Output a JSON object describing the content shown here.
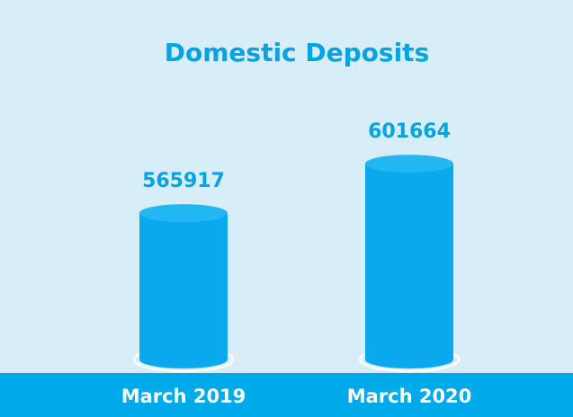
{
  "chart_data": {
    "type": "bar",
    "title": "Domestic Deposits",
    "categories": [
      "March 2019",
      "March 2020"
    ],
    "values": [
      565917,
      601664
    ],
    "color": "#0aa8ec",
    "ylim": [
      460000,
      620000
    ]
  }
}
